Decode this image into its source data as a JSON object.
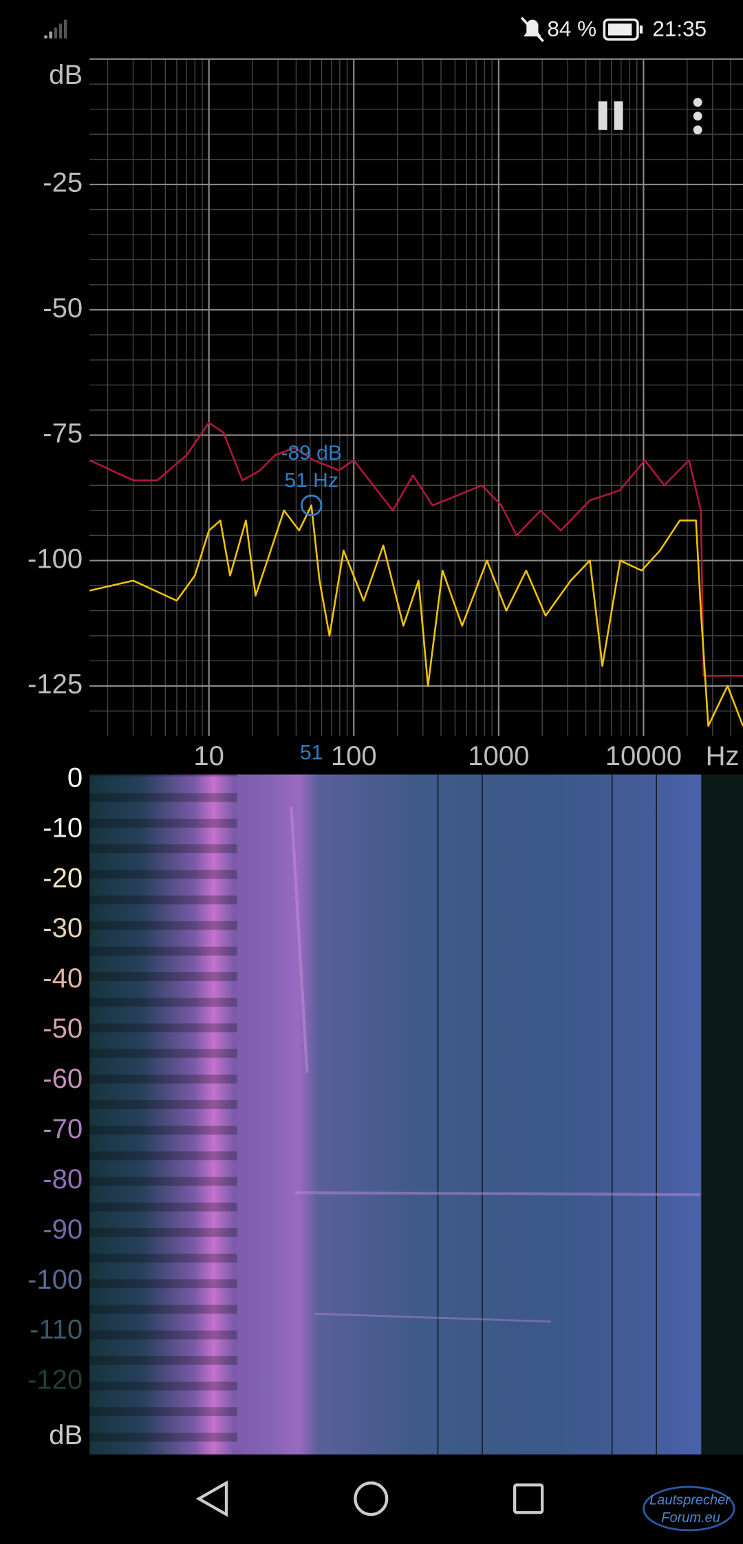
{
  "status_bar": {
    "battery": "84 %",
    "time": "21:35"
  },
  "chart_data": {
    "type": "line",
    "xscale": "log",
    "xlim": [
      1.5,
      48600
    ],
    "ylim": [
      -135,
      0
    ],
    "xticks": [
      10,
      100,
      1000,
      10000
    ],
    "yticks": [
      {
        "value": 0,
        "label": "dB"
      },
      -25,
      -50,
      -75,
      -100,
      -125
    ],
    "xminor": [
      2,
      3,
      4,
      5,
      6,
      7,
      8,
      9,
      20,
      30,
      40,
      50,
      60,
      70,
      80,
      90,
      200,
      300,
      400,
      500,
      600,
      700,
      800,
      900,
      2000,
      3000,
      4000,
      5000,
      6000,
      7000,
      8000,
      9000,
      20000,
      30000,
      40000
    ],
    "yminor": [
      -5,
      -10,
      -15,
      -20,
      -30,
      -35,
      -40,
      -45,
      -55,
      -60,
      -65,
      -70,
      -80,
      -85,
      -90,
      -95,
      -105,
      -110,
      -115,
      -120,
      -130
    ],
    "grid": true,
    "x_label": "Hz",
    "series": [
      {
        "color": "#b3173c",
        "x": [
          1.5,
          3,
          4.4,
          7,
          10,
          12.6,
          17,
          22.6,
          28.6,
          39,
          53,
          79,
          100,
          136,
          186,
          256,
          350,
          520,
          765,
          1045,
          1330,
          1950,
          2680,
          4260,
          6860,
          10200,
          13900,
          20600,
          24900,
          26000,
          48600
        ],
        "values": [
          -80,
          -84,
          -84,
          -79,
          -72.5,
          -74.5,
          -84,
          -82,
          -79,
          -77.5,
          -80,
          -82,
          -80,
          -85,
          -90,
          -83,
          -89,
          -87,
          -85,
          -89,
          -95,
          -90,
          -94,
          -88,
          -86,
          -80,
          -85,
          -80,
          -90,
          -123,
          -123
        ]
      },
      {
        "color": "#f2c300",
        "x": [
          1.5,
          3,
          6,
          8,
          10,
          12,
          14,
          18,
          21,
          26,
          33,
          42,
          51,
          58,
          68,
          85,
          117,
          160,
          220,
          280,
          325,
          410,
          560,
          830,
          1130,
          1550,
          2110,
          3140,
          4260,
          5200,
          6900,
          9700,
          13000,
          17800,
          23000,
          24900,
          28000,
          38000,
          48600
        ],
        "values": [
          -106,
          -104,
          -108,
          -103,
          -94,
          -92,
          -103,
          -92,
          -107,
          -99,
          -90,
          -94,
          -89,
          -104,
          -115,
          -98,
          -108,
          -97,
          -113,
          -104,
          -125,
          -102,
          -113,
          -100,
          -110,
          -102,
          -111,
          -104,
          -100,
          -121,
          -100,
          -102,
          -98,
          -92,
          -92,
          -110,
          -133,
          -125,
          -133
        ]
      }
    ],
    "cursor": {
      "x": 51,
      "y": -89,
      "y_label": "-89 dB",
      "x_label": "51 Hz"
    }
  },
  "spectrogram": {
    "ylim": [
      1,
      -134.5
    ],
    "yticks": [
      0,
      -10,
      -20,
      -30,
      -40,
      -50,
      -60,
      -70,
      -80,
      -90,
      -100,
      -110,
      -120,
      {
        "value": -131,
        "label": "dB"
      }
    ],
    "ytick_colors": [
      "#ffffff",
      "#f4f2ee",
      "#f0e6c0",
      "#e8d2b2",
      "#e2b4a4",
      "#d8a2b0",
      "#c890b8",
      "#b080c0",
      "#9070b8",
      "#7868a8",
      "#586890",
      "#3a5868",
      "#1e4030",
      "#c8c8c8"
    ]
  },
  "watermark": {
    "line1": "Lautsprecher",
    "line2": "Forum.eu"
  }
}
